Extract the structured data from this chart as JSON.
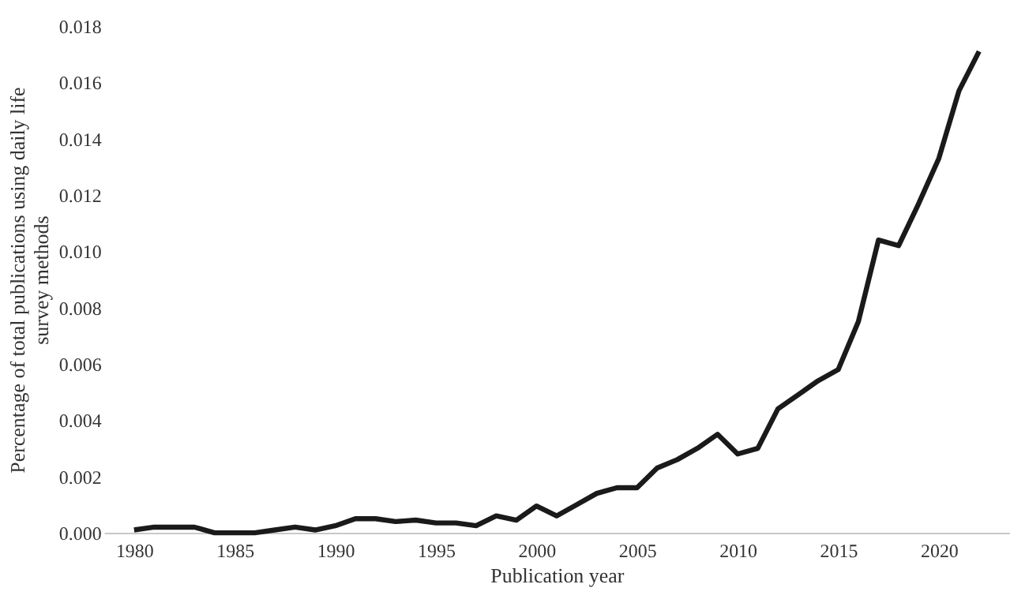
{
  "chart_data": {
    "type": "line",
    "xlabel": "Publication year",
    "ylabel": [
      "Percentage of total publications using daily life",
      "survey methods"
    ],
    "x": [
      1980,
      1981,
      1982,
      1983,
      1984,
      1985,
      1986,
      1987,
      1988,
      1989,
      1990,
      1991,
      1992,
      1993,
      1994,
      1995,
      1996,
      1997,
      1998,
      1999,
      2000,
      2001,
      2002,
      2003,
      2004,
      2005,
      2006,
      2007,
      2008,
      2009,
      2010,
      2011,
      2012,
      2013,
      2014,
      2015,
      2016,
      2017,
      2018,
      2019,
      2020,
      2021,
      2022
    ],
    "series": [
      {
        "color": "#1a1a1a",
        "values": [
          0.0001,
          0.0002,
          0.0002,
          0.0002,
          0,
          0,
          0,
          0.0001,
          0.0002,
          0.0001,
          0.00025,
          0.0005,
          0.0005,
          0.0004,
          0.00045,
          0.00035,
          0.00035,
          0.00025,
          0.0006,
          0.00045,
          0.00095,
          0.0006,
          0.001,
          0.0014,
          0.0016,
          0.0016,
          0.0023,
          0.0026,
          0.003,
          0.0035,
          0.0028,
          0.003,
          0.0044,
          0.0049,
          0.0054,
          0.0058,
          0.0075,
          0.0104,
          0.0102,
          0.0117,
          0.0133,
          0.0157,
          0.0171
        ]
      }
    ],
    "xlim": [
      1978.5,
      2023.5
    ],
    "xticks": [
      1980,
      1985,
      1990,
      1995,
      2000,
      2005,
      2010,
      2015,
      2020
    ],
    "ylim": [
      0,
      0.018
    ],
    "yticks": [
      {
        "value": 0,
        "label": "0.000"
      },
      {
        "value": 0.002,
        "label": "0.002"
      },
      {
        "value": 0.004,
        "label": "0.004"
      },
      {
        "value": 0.006,
        "label": "0.006"
      },
      {
        "value": 0.008,
        "label": "0.008"
      },
      {
        "value": 0.01,
        "label": "0.010"
      },
      {
        "value": 0.012,
        "label": "0.012"
      },
      {
        "value": 0.014,
        "label": "0.014"
      },
      {
        "value": 0.016,
        "label": "0.016"
      },
      {
        "value": 0.018,
        "label": "0.018"
      }
    ],
    "grid": false,
    "marker": "none",
    "line_style": "solid"
  }
}
